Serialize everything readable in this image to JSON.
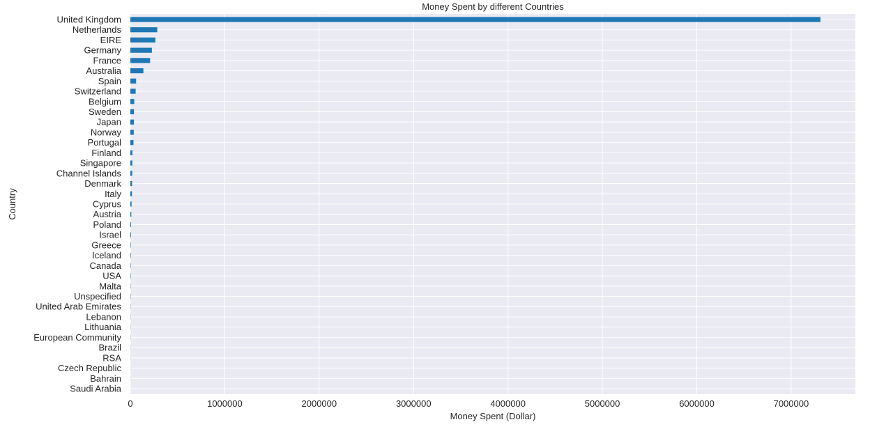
{
  "chart_data": {
    "type": "bar",
    "orientation": "horizontal",
    "title": "Money Spent by different Countries",
    "xlabel": "Money Spent (Dollar)",
    "ylabel": "Country",
    "xlim": [
      0,
      7680000
    ],
    "xticks": [
      0,
      1000000,
      2000000,
      3000000,
      4000000,
      5000000,
      6000000,
      7000000
    ],
    "xtick_labels": [
      "0",
      "1000000",
      "2000000",
      "3000000",
      "4000000",
      "5000000",
      "6000000",
      "7000000"
    ],
    "grid": true,
    "style": "seaborn-darkgrid",
    "bar_color": "#1f77b4",
    "background_color": "#eaeaf2",
    "categories": [
      "United Kingdom",
      "Netherlands",
      "EIRE",
      "Germany",
      "France",
      "Australia",
      "Spain",
      "Switzerland",
      "Belgium",
      "Sweden",
      "Japan",
      "Norway",
      "Portugal",
      "Finland",
      "Singapore",
      "Channel Islands",
      "Denmark",
      "Italy",
      "Cyprus",
      "Austria",
      "Poland",
      "Israel",
      "Greece",
      "Iceland",
      "Canada",
      "USA",
      "Malta",
      "Unspecified",
      "United Arab Emirates",
      "Lebanon",
      "Lithuania",
      "European Community",
      "Brazil",
      "RSA",
      "Czech Republic",
      "Bahrain",
      "Saudi Arabia"
    ],
    "values": [
      7310000,
      285000,
      265000,
      228000,
      209000,
      138000,
      61000,
      56000,
      41000,
      38000,
      37000,
      36000,
      33000,
      22000,
      21000,
      20000,
      18000,
      17000,
      13000,
      10000,
      7000,
      7000,
      4600,
      4300,
      3700,
      3600,
      2500,
      2700,
      1900,
      1700,
      1700,
      1300,
      1100,
      1000,
      700,
      550,
      130
    ]
  }
}
